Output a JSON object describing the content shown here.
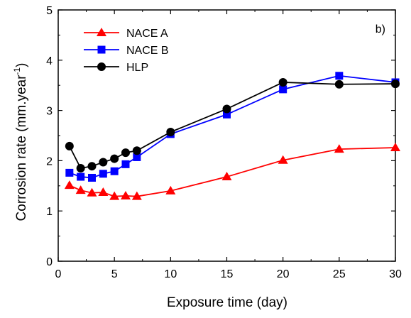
{
  "chart_data": {
    "type": "line",
    "panel_label": "b)",
    "xlabel": "Exposure time (day)",
    "ylabel_main": "Corrosion rate (mm.year",
    "ylabel_sup": "-1",
    "ylabel_close": ")",
    "xlim": [
      0,
      30
    ],
    "ylim": [
      0,
      5
    ],
    "xticks": [
      0,
      5,
      10,
      15,
      20,
      25,
      30
    ],
    "yticks": [
      0,
      1,
      2,
      3,
      4,
      5
    ],
    "grid": false,
    "legend_position": "top-left",
    "series": [
      {
        "name": "NACE A",
        "color": "#ff0000",
        "marker": "triangle",
        "x": [
          1,
          2,
          3,
          4,
          5,
          6,
          7,
          10,
          15,
          20,
          25,
          30
        ],
        "y": [
          1.51,
          1.41,
          1.36,
          1.37,
          1.29,
          1.3,
          1.29,
          1.4,
          1.68,
          2.01,
          2.23,
          2.26
        ]
      },
      {
        "name": "NACE B",
        "color": "#0000ff",
        "marker": "square",
        "x": [
          1,
          2,
          3,
          4,
          5,
          6,
          7,
          10,
          15,
          20,
          25,
          30
        ],
        "y": [
          1.76,
          1.68,
          1.66,
          1.74,
          1.79,
          1.93,
          2.07,
          2.53,
          2.92,
          3.42,
          3.69,
          3.56
        ]
      },
      {
        "name": "HLP",
        "color": "#000000",
        "marker": "circle",
        "x": [
          1,
          2,
          3,
          4,
          5,
          6,
          7,
          10,
          15,
          20,
          25,
          30
        ],
        "y": [
          2.29,
          1.85,
          1.89,
          1.97,
          2.04,
          2.16,
          2.2,
          2.57,
          3.03,
          3.56,
          3.52,
          3.53
        ]
      }
    ]
  }
}
